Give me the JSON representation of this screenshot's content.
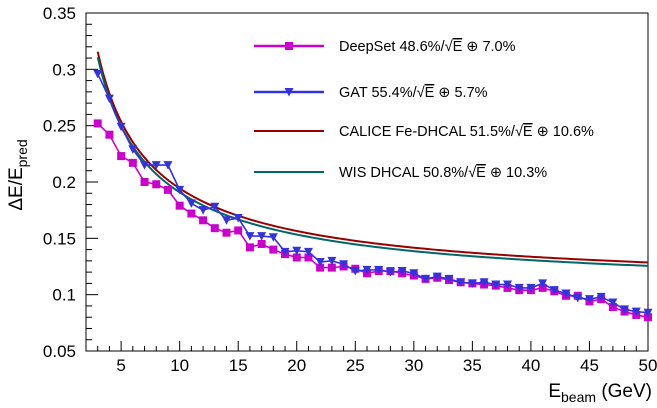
{
  "chart_data": {
    "type": "line",
    "xlabel": {
      "main": "E",
      "sub": "beam",
      "suffix": " (GeV)"
    },
    "ylabel": {
      "main": "ΔE/E",
      "sub": "pred"
    },
    "xlim": [
      2,
      50
    ],
    "ylim": [
      0.05,
      0.35
    ],
    "xticks": [
      5,
      10,
      15,
      20,
      25,
      30,
      35,
      40,
      45,
      50
    ],
    "yticks": [
      0.05,
      0.1,
      0.15,
      0.2,
      0.25,
      0.3,
      0.35
    ],
    "grid": false,
    "legend_position": "top-right",
    "colors": {
      "deepset": "#cc00cc",
      "gat": "#3333dd",
      "calice": "#990000",
      "wis": "#006666"
    },
    "series": [
      {
        "name": "DeepSet 48.6%/√E ⊕ 7.0%",
        "legend_label": {
          "before": "DeepSet 48.6%/",
          "root": "E",
          "after": " ⊕ 7.0%"
        },
        "marker": "square",
        "color": "#cc00cc",
        "x": [
          3,
          4,
          5,
          6,
          7,
          8,
          9,
          10,
          11,
          12,
          13,
          14,
          15,
          16,
          17,
          18,
          19,
          20,
          21,
          22,
          23,
          24,
          25,
          26,
          27,
          28,
          29,
          30,
          31,
          32,
          33,
          34,
          35,
          36,
          37,
          38,
          39,
          40,
          41,
          42,
          43,
          44,
          45,
          46,
          47,
          48,
          49,
          50
        ],
        "y": [
          0.252,
          0.242,
          0.223,
          0.217,
          0.2,
          0.198,
          0.193,
          0.179,
          0.172,
          0.166,
          0.159,
          0.155,
          0.157,
          0.142,
          0.145,
          0.14,
          0.136,
          0.133,
          0.133,
          0.124,
          0.124,
          0.125,
          0.123,
          0.119,
          0.121,
          0.121,
          0.119,
          0.117,
          0.114,
          0.115,
          0.113,
          0.111,
          0.11,
          0.109,
          0.108,
          0.106,
          0.104,
          0.104,
          0.106,
          0.103,
          0.099,
          0.099,
          0.094,
          0.096,
          0.089,
          0.085,
          0.082,
          0.08
        ]
      },
      {
        "name": "GAT 55.4%/√E ⊕ 5.7%",
        "legend_label": {
          "before": "GAT 55.4%/",
          "root": "E",
          "after": " ⊕ 5.7%"
        },
        "marker": "triangle-down",
        "color": "#3333dd",
        "x": [
          3,
          4,
          5,
          6,
          7,
          8,
          9,
          10,
          11,
          12,
          13,
          14,
          15,
          16,
          17,
          18,
          19,
          20,
          21,
          22,
          23,
          24,
          25,
          26,
          27,
          28,
          29,
          30,
          31,
          32,
          33,
          34,
          35,
          36,
          37,
          38,
          39,
          40,
          41,
          42,
          43,
          44,
          45,
          46,
          47,
          48,
          49,
          50
        ],
        "y": [
          0.296,
          0.274,
          0.249,
          0.229,
          0.215,
          0.215,
          0.215,
          0.193,
          0.181,
          0.175,
          0.178,
          0.166,
          0.168,
          0.152,
          0.152,
          0.151,
          0.138,
          0.139,
          0.138,
          0.129,
          0.13,
          0.127,
          0.121,
          0.122,
          0.122,
          0.12,
          0.121,
          0.119,
          0.114,
          0.116,
          0.114,
          0.111,
          0.11,
          0.111,
          0.109,
          0.109,
          0.106,
          0.106,
          0.11,
          0.104,
          0.101,
          0.097,
          0.096,
          0.098,
          0.093,
          0.087,
          0.085,
          0.084
        ]
      },
      {
        "name": "CALICE Fe-DHCAL 51.5%/√E ⊕ 10.6%",
        "legend_label": {
          "before": "CALICE Fe-DHCAL 51.5%/",
          "root": "E",
          "after": " ⊕ 10.6%"
        },
        "marker": "none",
        "color": "#990000",
        "a": 0.515,
        "c": 0.106,
        "x_range": [
          3,
          50
        ]
      },
      {
        "name": "WIS DHCAL 50.8%/√E ⊕ 10.3%",
        "legend_label": {
          "before": "WIS DHCAL 50.8%/",
          "root": "E",
          "after": " ⊕ 10.3%"
        },
        "marker": "none",
        "color": "#006666",
        "a": 0.508,
        "c": 0.103,
        "x_range": [
          3,
          50
        ]
      }
    ]
  }
}
